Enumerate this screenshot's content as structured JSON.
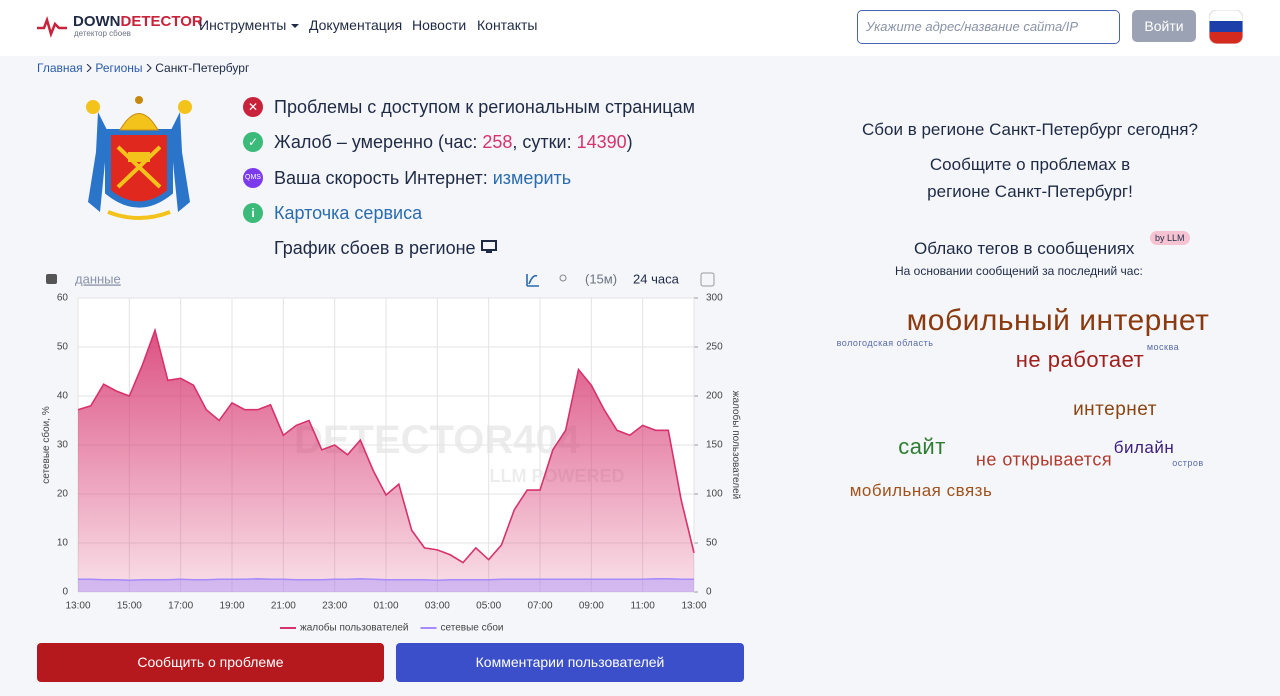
{
  "header": {
    "logo_a": "DOWN",
    "logo_b": "DETECTOR",
    "logo_sub": "детектор сбоев",
    "nav": [
      "Инструменты",
      "Документация",
      "Новости",
      "Контакты"
    ],
    "search_placeholder": "Укажите адрес/название сайта/IP",
    "login": "Войти"
  },
  "breadcrumbs": [
    "Главная",
    "Регионы",
    "Санкт-Петербург"
  ],
  "status": {
    "access": "Проблемы с доступом к региональным страницам",
    "complaints_prefix": "Жалоб – умеренно (час: ",
    "complaints_hour": 258,
    "complaints_mid": ", сутки: ",
    "complaints_day": 14390,
    "complaints_suffix": ")",
    "qms": "QMS",
    "speed_text": "Ваша скорость Интернет: ",
    "speed_link": "измерить",
    "card": "Карточка сервиса",
    "chart_heading": "График сбоев в регионе"
  },
  "toolbar": {
    "data_link": "данные",
    "interval": "(15м)",
    "range": "24 часа"
  },
  "watermark": {
    "title": "DETECTOR404",
    "sub": "LLM POWERED"
  },
  "chart_data": {
    "type": "area",
    "ylabel": "сетевые сбои, %",
    "y2label": "жалобы пользователей",
    "x": [
      0,
      0.5,
      1,
      1.5,
      2,
      2.5,
      3,
      3.5,
      4,
      4.5,
      5,
      5.5,
      6,
      6.5,
      7,
      7.5,
      8,
      8.5,
      9,
      9.5,
      10,
      10.5,
      11,
      11.5,
      12,
      12.5,
      13,
      13.5,
      14,
      14.5,
      15,
      15.5,
      16,
      16.5,
      17,
      17.5,
      18,
      18.5,
      19,
      19.5,
      20,
      20.5,
      21,
      21.5,
      22,
      22.5,
      23,
      23.5,
      24
    ],
    "xlim": [
      0,
      24
    ],
    "xticks": [
      {
        "value": 0,
        "label": "13:00"
      },
      {
        "value": 2,
        "label": "15:00"
      },
      {
        "value": 4,
        "label": "17:00"
      },
      {
        "value": 6,
        "label": "19:00"
      },
      {
        "value": 8,
        "label": "21:00"
      },
      {
        "value": 10,
        "label": "23:00"
      },
      {
        "value": 12,
        "label": "01:00"
      },
      {
        "value": 14,
        "label": "03:00"
      },
      {
        "value": 16,
        "label": "05:00"
      },
      {
        "value": 18,
        "label": "07:00"
      },
      {
        "value": 20,
        "label": "09:00"
      },
      {
        "value": 22,
        "label": "11:00"
      },
      {
        "value": 24,
        "label": "13:00"
      }
    ],
    "ylim": [
      0,
      60
    ],
    "yticks": [
      0,
      10,
      20,
      30,
      40,
      50,
      60
    ],
    "y2lim": [
      0,
      300
    ],
    "y2ticks": [
      0,
      50,
      100,
      150,
      200,
      250,
      300
    ],
    "grid": true,
    "series": [
      {
        "name": "жалобы пользователей",
        "color": "#d6336c",
        "axis": "y2",
        "values": [
          186,
          190,
          212,
          205,
          200,
          231,
          267,
          216,
          218,
          211,
          186,
          175,
          193,
          186,
          186,
          191,
          160,
          170,
          175,
          145,
          150,
          140,
          155,
          124,
          99,
          110,
          63,
          45,
          43,
          38,
          30,
          45,
          33,
          48,
          84,
          104,
          104,
          145,
          165,
          227,
          211,
          186,
          165,
          160,
          170,
          165,
          165,
          94,
          40
        ]
      },
      {
        "name": "сетевые сбои",
        "color": "#a78bfa",
        "values": [
          2.6,
          2.6,
          2.5,
          2.5,
          2.4,
          2.5,
          2.5,
          2.5,
          2.6,
          2.5,
          2.5,
          2.6,
          2.6,
          2.6,
          2.7,
          2.6,
          2.6,
          2.5,
          2.5,
          2.5,
          2.6,
          2.6,
          2.7,
          2.6,
          2.5,
          2.5,
          2.5,
          2.5,
          2.4,
          2.5,
          2.5,
          2.5,
          2.5,
          2.6,
          2.6,
          2.6,
          2.6,
          2.6,
          2.6,
          2.6,
          2.6,
          2.6,
          2.6,
          2.6,
          2.6,
          2.7,
          2.7,
          2.6,
          2.6
        ]
      }
    ]
  },
  "buttons": {
    "report": "Сообщить о проблеме",
    "comments": "Комментарии пользователей"
  },
  "sidebar": {
    "today": "Сбои в регионе Санкт-Петербург сегодня?",
    "report_line1": "Сообщите о проблемах в",
    "report_line2": "регионе Санкт-Петербург!",
    "cloud_title": "Облако тегов в сообщениях",
    "llm_badge": "by LLM",
    "cloud_note": "На основании сообщений за последний час:",
    "tags": [
      "мобильный интернет",
      "вологодская область",
      "москва",
      "не работает",
      "интернет",
      "сайт",
      "билайн",
      "не открывается",
      "остров",
      "мобильная связь"
    ]
  }
}
